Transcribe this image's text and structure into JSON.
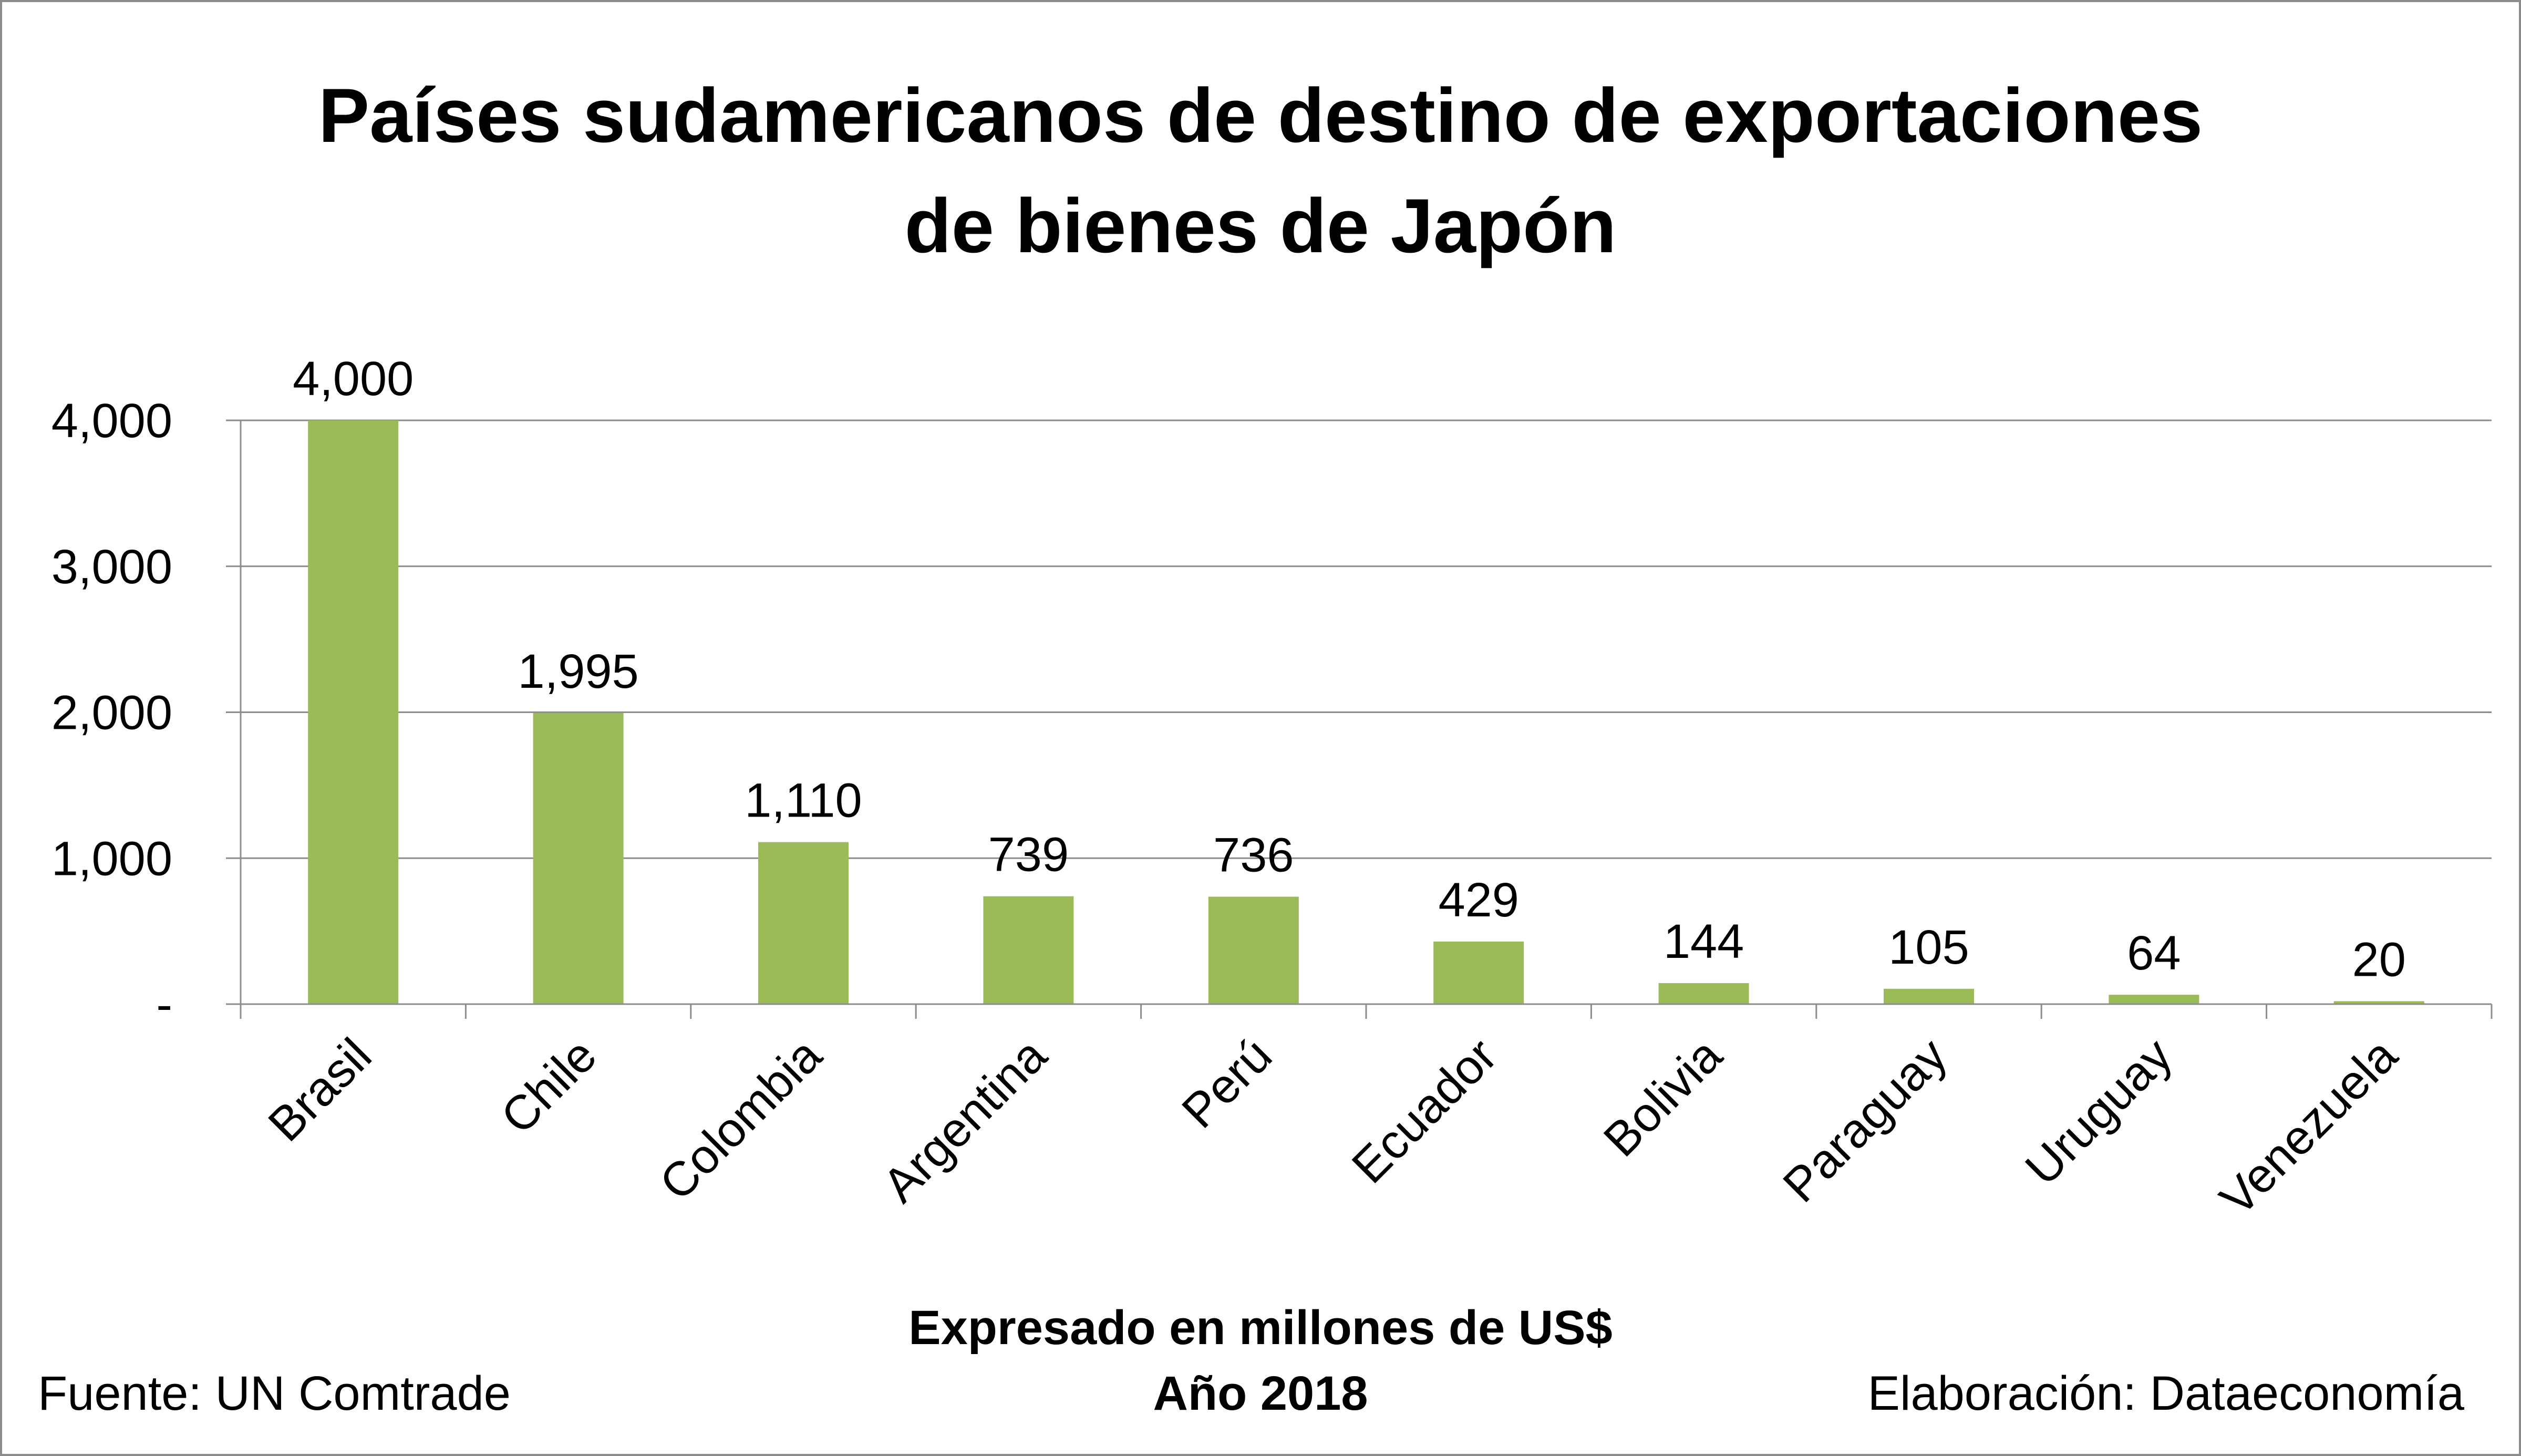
{
  "chart_data": {
    "type": "bar",
    "title_lines": [
      "Países sudamericanos de destino de exportaciones",
      "de bienes de Japón"
    ],
    "categories": [
      "Brasil",
      "Chile",
      "Colombia",
      "Argentina",
      "Perú",
      "Ecuador",
      "Bolivia",
      "Paraguay",
      "Uruguay",
      "Venezuela"
    ],
    "values": [
      4000,
      1995,
      1110,
      739,
      736,
      429,
      144,
      105,
      64,
      20
    ],
    "data_labels": [
      "4,000",
      "1,995",
      "1,110",
      "739",
      "736",
      "429",
      "144",
      "105",
      "64",
      "20"
    ],
    "y_ticks": [
      0,
      1000,
      2000,
      3000,
      4000
    ],
    "y_tick_labels": [
      "-",
      "1,000",
      "2,000",
      "3,000",
      "4,000"
    ],
    "ylim": [
      0,
      4000
    ],
    "grid": true,
    "bar_color": "#9bbb59",
    "xlabel": "Expresado en millones de US$",
    "year_label": "Año 2018",
    "source": "Fuente: UN Comtrade",
    "credit": "Elaboración: Dataeconomía"
  }
}
